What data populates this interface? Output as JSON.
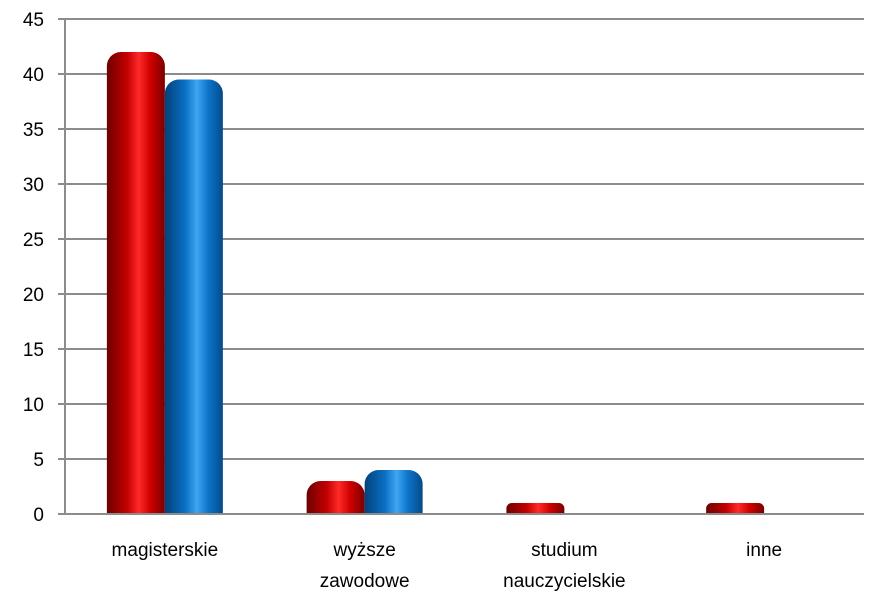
{
  "chart_data": {
    "type": "bar",
    "title": "",
    "xlabel": "",
    "ylabel": "",
    "categories": [
      [
        "magisterskie"
      ],
      [
        "wyższe",
        "zawodowe"
      ],
      [
        "studium",
        "nauczycielskie"
      ],
      [
        "inne"
      ]
    ],
    "series": [
      {
        "values": [
          42,
          3,
          1,
          1
        ],
        "color": "#c00000"
      },
      {
        "values": [
          39.5,
          4,
          0,
          0
        ],
        "color": "#0070c0"
      }
    ],
    "ylim": [
      0,
      45
    ],
    "yticks": [
      0,
      5,
      10,
      15,
      20,
      25,
      30,
      35,
      40,
      45
    ],
    "grid": true,
    "legend": "none"
  }
}
